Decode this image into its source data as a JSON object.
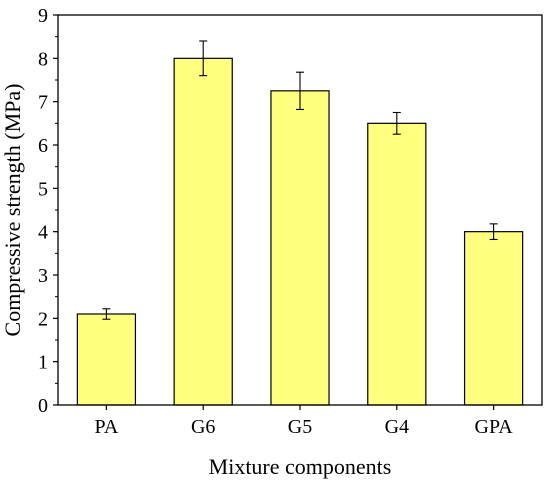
{
  "chart_data": {
    "type": "bar",
    "title": "",
    "xlabel": "Mixture components",
    "ylabel": "Compressive strength (MPa)",
    "categories": [
      "PA",
      "G6",
      "G5",
      "G4",
      "GPA"
    ],
    "values": [
      2.1,
      8.0,
      7.25,
      6.5,
      4.0
    ],
    "error": [
      0.12,
      0.4,
      0.43,
      0.25,
      0.18
    ],
    "ylim": [
      0,
      9
    ],
    "yticks": [
      "0",
      "1",
      "2",
      "3",
      "4",
      "5",
      "6",
      "7",
      "8",
      "9"
    ],
    "bar_color": "#ffff80",
    "grid": false,
    "legend": "none"
  }
}
